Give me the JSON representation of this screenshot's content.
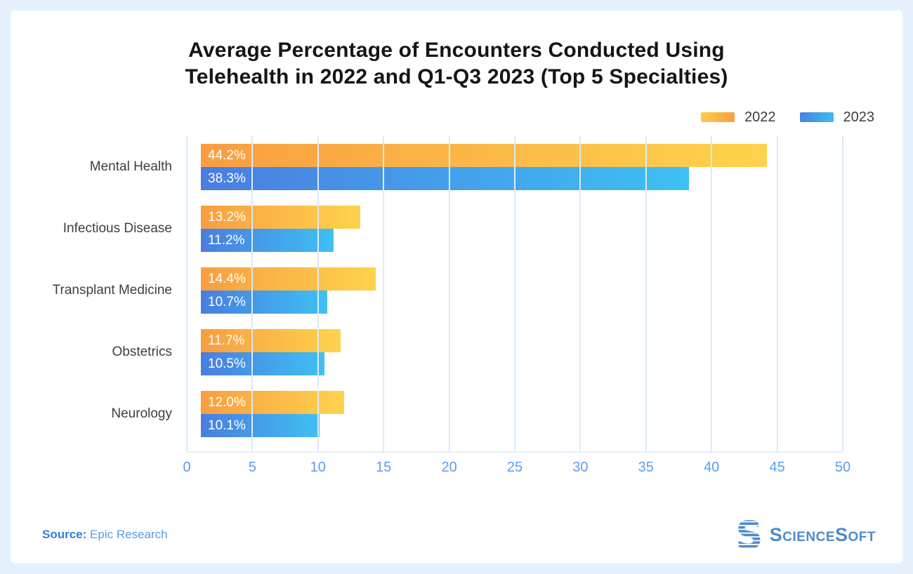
{
  "header": {
    "title_line1": "Average Percentage of Encounters Conducted Using",
    "title_line2": "Telehealth in 2022 and Q1-Q3 2023 (Top 5 Specialties)"
  },
  "chart_data": {
    "type": "bar",
    "orientation": "horizontal",
    "title": "Average Percentage of Encounters Conducted Using Telehealth in 2022 and Q1-Q3 2023 (Top 5 Specialties)",
    "categories": [
      "Mental Health",
      "Infectious Disease",
      "Transplant Medicine",
      "Obstetrics",
      "Neurology"
    ],
    "series": [
      {
        "name": "2022",
        "values": [
          44.2,
          13.2,
          14.4,
          11.7,
          12.0
        ],
        "labels": [
          "44.2%",
          "13.2%",
          "14.4%",
          "11.7%",
          "12.0%"
        ],
        "color_start": "#F89E41",
        "color_end": "#FED34C",
        "legend_gradient": [
          "#FBCC4A",
          "#F7A03F"
        ]
      },
      {
        "name": "2023",
        "values": [
          38.3,
          11.2,
          10.7,
          10.5,
          10.1
        ],
        "labels": [
          "38.3%",
          "11.2%",
          "10.7%",
          "10.5%",
          "10.1%"
        ],
        "color_start": "#4A7DE0",
        "color_end": "#3FC0F3",
        "legend_gradient": [
          "#4583E3",
          "#3FBAF0"
        ]
      }
    ],
    "axis": {
      "ticks": [
        0,
        5,
        10,
        15,
        20,
        25,
        30,
        35,
        40,
        45,
        50
      ],
      "max": 50
    },
    "grid": true,
    "legend_position": "top-right",
    "xlabel": "",
    "ylabel": ""
  },
  "footer": {
    "source_label": "Source:",
    "source_value": "Epic Research",
    "brand": "ScienceSoft"
  },
  "colors": {
    "page_background": "#E4F1FD",
    "card_background": "#FFFFFF",
    "title_text": "#151515",
    "category_text": "#3F3F3F",
    "tick_text": "#5C9CF2",
    "gridline": "#DCEAFA",
    "axis_line": "#E6EDF5",
    "bar_value_text": "#FFFFFF",
    "source_label": "#2F7CDE",
    "source_value": "#5B9BE6",
    "brand_blue": "#4E8CCB"
  }
}
